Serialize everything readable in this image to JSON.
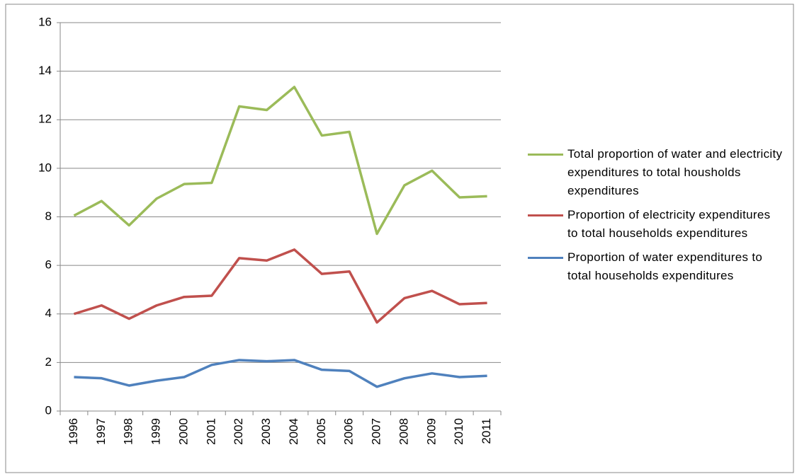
{
  "chart_data": {
    "type": "line",
    "categories": [
      "1996",
      "1997",
      "1998",
      "1999",
      "2000",
      "2001",
      "2002",
      "2003",
      "2004",
      "2005",
      "2006",
      "2007",
      "2008",
      "2009",
      "2010",
      "2011"
    ],
    "series": [
      {
        "name": "Total proportion of water and electricity expenditures to total housholds expenditures",
        "color": "#9bbb59",
        "values": [
          8.05,
          8.65,
          7.65,
          8.75,
          9.35,
          9.4,
          12.55,
          12.4,
          13.35,
          11.35,
          11.5,
          7.3,
          9.3,
          9.9,
          8.8,
          8.85
        ]
      },
      {
        "name": "Proportion of electricity expenditures to total households expenditures",
        "color": "#c0504d",
        "values": [
          4.0,
          4.35,
          3.8,
          4.35,
          4.7,
          4.75,
          6.3,
          6.2,
          6.65,
          5.65,
          5.75,
          3.65,
          4.65,
          4.95,
          4.4,
          4.45
        ]
      },
      {
        "name": "Proportion of water expenditures to total households expenditures",
        "color": "#4f81bd",
        "values": [
          1.4,
          1.35,
          1.05,
          1.25,
          1.4,
          1.9,
          2.1,
          2.05,
          2.1,
          1.7,
          1.65,
          1.0,
          1.35,
          1.55,
          1.4,
          1.45
        ]
      }
    ],
    "ylim": [
      0,
      16
    ],
    "yticks": [
      0,
      2,
      4,
      6,
      8,
      10,
      12,
      14,
      16
    ],
    "grid": true,
    "legend": "right"
  }
}
